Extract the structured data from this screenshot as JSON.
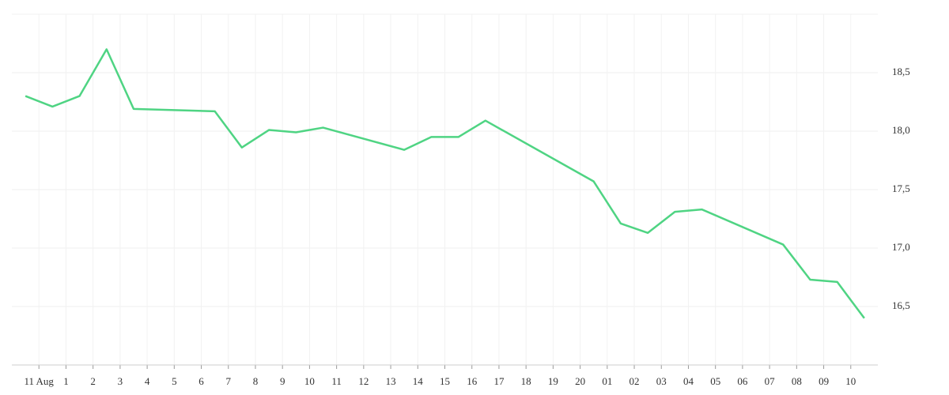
{
  "chart_data": {
    "type": "line",
    "x": [
      -0.5,
      0.5,
      1.5,
      2.5,
      3.5,
      6.5,
      7.5,
      8.5,
      9.5,
      10.5,
      13.5,
      14.5,
      15.5,
      16.5,
      20.5,
      21.5,
      22.5,
      23.5,
      24.5,
      27.5,
      28.5,
      29.5,
      30.5
    ],
    "series": [
      {
        "color": "#4fd483",
        "values": [
          18.3,
          18.21,
          18.3,
          18.7,
          18.19,
          18.17,
          17.86,
          18.01,
          17.99,
          18.03,
          17.84,
          17.95,
          17.95,
          18.09,
          17.57,
          17.21,
          17.13,
          17.31,
          17.33,
          17.03,
          16.73,
          16.71,
          16.4
        ]
      }
    ],
    "xlim": [
      -1,
      31
    ],
    "xticks": [
      {
        "value": 0,
        "label": "11 Aug"
      },
      1,
      2,
      3,
      4,
      5,
      6,
      7,
      8,
      9,
      10,
      11,
      12,
      13,
      14,
      15,
      16,
      17,
      18,
      19,
      20,
      {
        "value": 21,
        "label": "01"
      },
      {
        "value": 22,
        "label": "02"
      },
      {
        "value": 23,
        "label": "03"
      },
      {
        "value": 24,
        "label": "04"
      },
      {
        "value": 25,
        "label": "05"
      },
      {
        "value": 26,
        "label": "06"
      },
      {
        "value": 27,
        "label": "07"
      },
      {
        "value": 28,
        "label": "08"
      },
      {
        "value": 29,
        "label": "09"
      },
      {
        "value": 30,
        "label": "10"
      }
    ],
    "ylim": [
      16,
      19
    ],
    "yticks": [
      {
        "value": 16.5,
        "label": "16,5"
      },
      {
        "value": 17,
        "label": "17,0"
      },
      {
        "value": 17.5,
        "label": "17,5"
      },
      {
        "value": 18,
        "label": "18,0"
      },
      {
        "value": 18.5,
        "label": "18,5"
      }
    ],
    "grid": true
  }
}
